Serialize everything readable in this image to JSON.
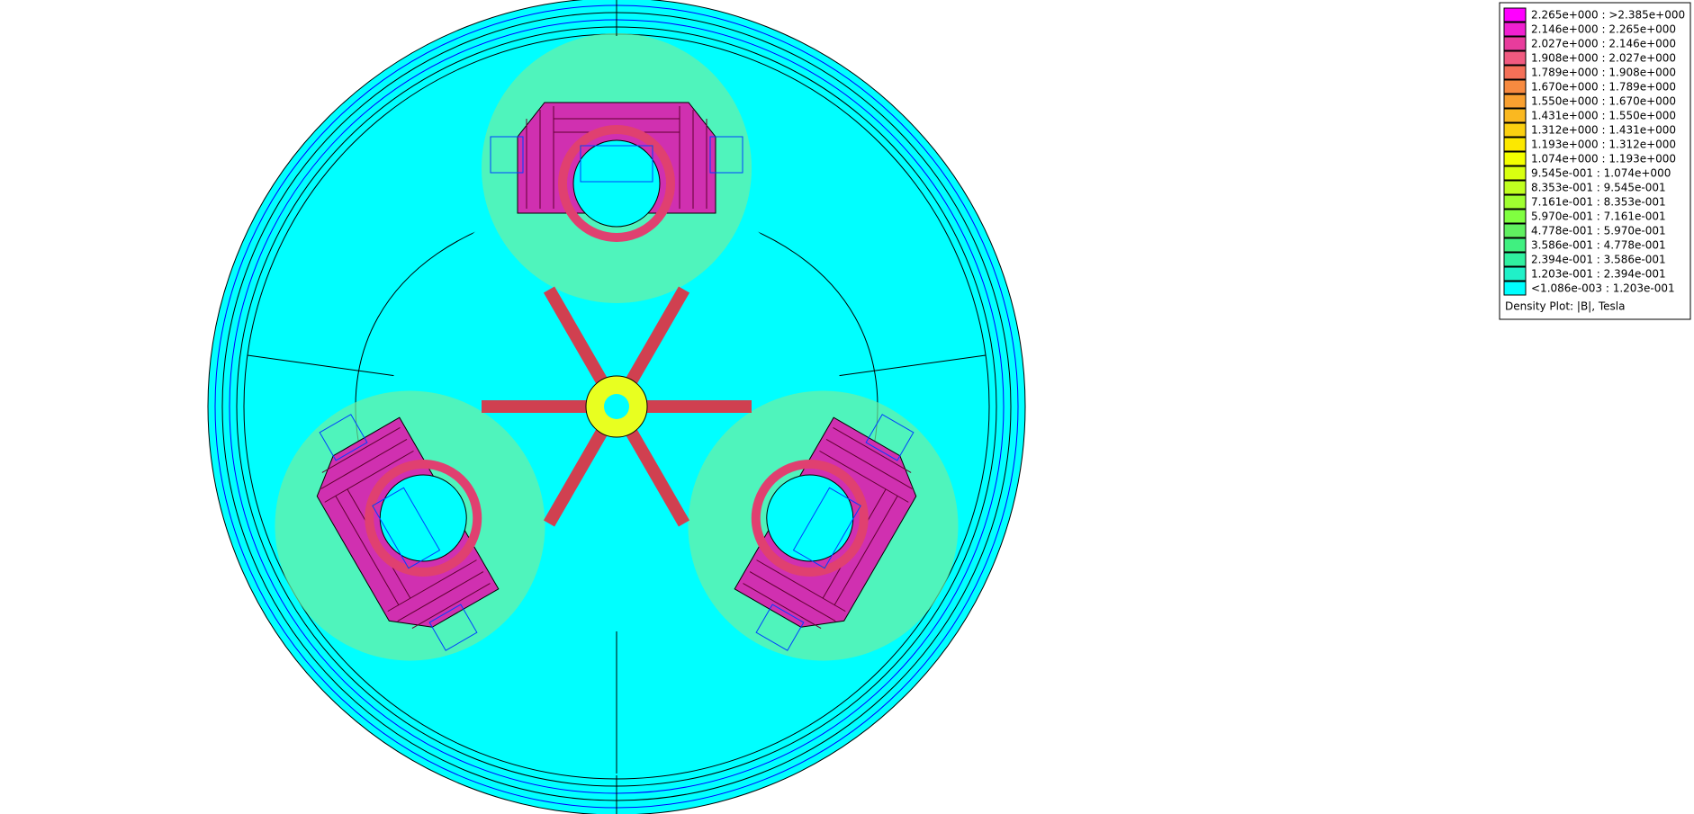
{
  "legend": {
    "entries": [
      {
        "label": "2.265e+000 : >2.385e+000",
        "color": "#ff00ff"
      },
      {
        "label": "2.146e+000 : 2.265e+000",
        "color": "#f020d0"
      },
      {
        "label": "2.027e+000 : 2.146e+000",
        "color": "#e83c9c"
      },
      {
        "label": "1.908e+000 : 2.027e+000",
        "color": "#f05a80"
      },
      {
        "label": "1.789e+000 : 1.908e+000",
        "color": "#f47058"
      },
      {
        "label": "1.670e+000 : 1.789e+000",
        "color": "#f78a40"
      },
      {
        "label": "1.550e+000 : 1.670e+000",
        "color": "#f9a030"
      },
      {
        "label": "1.431e+000 : 1.550e+000",
        "color": "#fab820"
      },
      {
        "label": "1.312e+000 : 1.431e+000",
        "color": "#fbd010"
      },
      {
        "label": "1.193e+000 : 1.312e+000",
        "color": "#fce800"
      },
      {
        "label": "1.074e+000 : 1.193e+000",
        "color": "#f4ff00"
      },
      {
        "label": "9.545e-001 : 1.074e+000",
        "color": "#d8ff10"
      },
      {
        "label": "8.353e-001 : 9.545e-001",
        "color": "#c0ff20"
      },
      {
        "label": "7.161e-001 : 8.353e-001",
        "color": "#a0ff30"
      },
      {
        "label": "5.970e-001 : 7.161e-001",
        "color": "#80ff40"
      },
      {
        "label": "4.778e-001 : 5.970e-001",
        "color": "#60f060"
      },
      {
        "label": "3.586e-001 : 4.778e-001",
        "color": "#40f080"
      },
      {
        "label": "2.394e-001 : 3.586e-001",
        "color": "#30f0a0"
      },
      {
        "label": "1.203e-001 : 2.394e-001",
        "color": "#20f0c8"
      },
      {
        "label": "<1.086e-003 : 1.203e-001",
        "color": "#00ffff"
      }
    ],
    "caption": "Density Plot: |B|, Tesla"
  }
}
